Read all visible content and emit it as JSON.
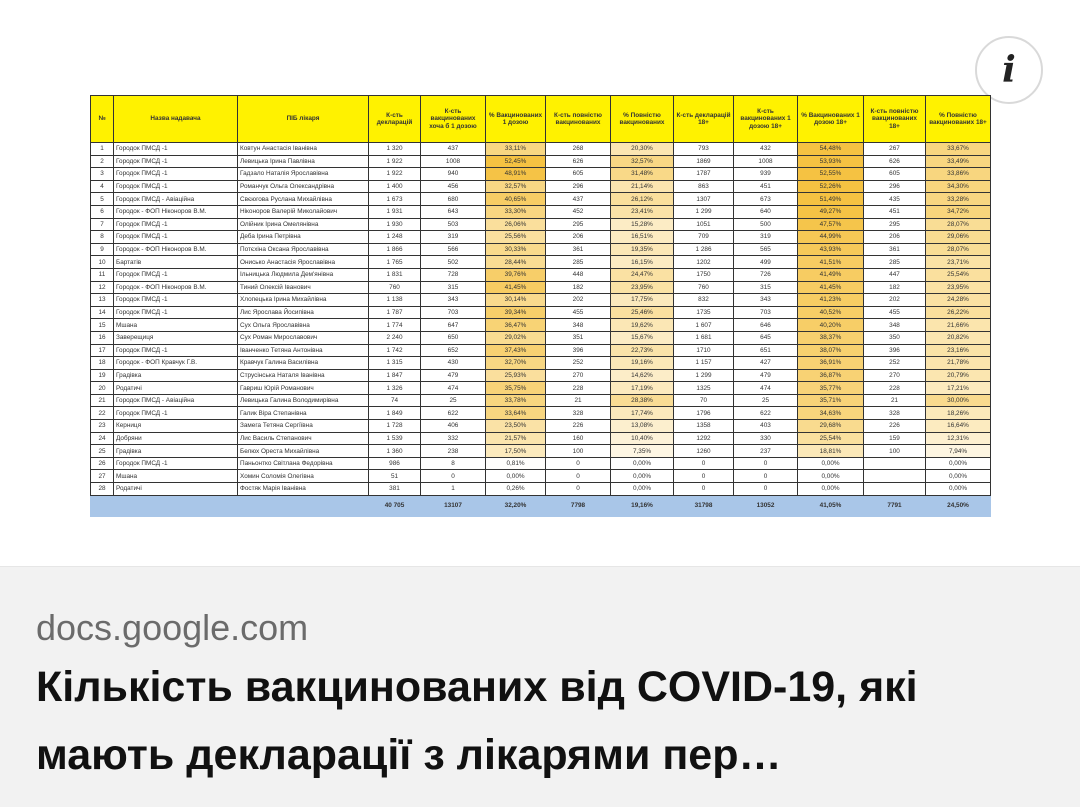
{
  "info_icon": "info-icon",
  "table": {
    "headers": [
      "№",
      "Назва надавача",
      "ПІБ лікаря",
      "К-сть декларацій",
      "К-сть вакцинованих хоча б 1 дозою",
      "% Вакцинованих 1 дозою",
      "К-сть повністю вакцинованих",
      "% Повністю вакцинованих",
      "К-сть декларацій 18+",
      "К-сть вакцинованих 1 дозою 18+",
      "% Вакцинованих 1 дозою 18+",
      "К-сть повністю вакцинованих 18+",
      "% Повністю вакцинованих 18+"
    ],
    "rows": [
      [
        "1",
        "Городок ПМСД -1",
        "Ковтун Анастасія Іванівна",
        "1 320",
        "437",
        "33,11%",
        "268",
        "20,30%",
        "793",
        "432",
        "54,48%",
        "267",
        "33,67%"
      ],
      [
        "2",
        "Городок ПМСД -1",
        "Левицька Ірина Павлівна",
        "1 922",
        "1008",
        "52,45%",
        "626",
        "32,57%",
        "1869",
        "1008",
        "53,93%",
        "626",
        "33,49%"
      ],
      [
        "3",
        "Городок ПМСД -1",
        "Гадзало Наталія Ярославівна",
        "1 922",
        "940",
        "48,91%",
        "605",
        "31,48%",
        "1787",
        "939",
        "52,55%",
        "605",
        "33,86%"
      ],
      [
        "4",
        "Городок ПМСД -1",
        "Романчук Ольга  Олександрівна",
        "1 400",
        "456",
        "32,57%",
        "296",
        "21,14%",
        "863",
        "451",
        "52,26%",
        "296",
        "34,30%"
      ],
      [
        "5",
        "Городок ПМСД - Авіаційна",
        "Свєюгова Руслана Михайлівна",
        "1 673",
        "680",
        "40,65%",
        "437",
        "26,12%",
        "1307",
        "673",
        "51,49%",
        "435",
        "33,28%"
      ],
      [
        "6",
        "Городок - ФОП Ніконоров В.М.",
        "Ніконоров Валерій Миколайович",
        "1 931",
        "643",
        "33,30%",
        "452",
        "23,41%",
        "1 299",
        "640",
        "49,27%",
        "451",
        "34,72%"
      ],
      [
        "7",
        "Городок ПМСД -1",
        "Олійник Ірина Омелянівна",
        "1 930",
        "503",
        "26,06%",
        "295",
        "15,28%",
        "1051",
        "500",
        "47,57%",
        "295",
        "28,07%"
      ],
      [
        "8",
        "Городок ПМСД -1",
        "Деба Ірина Петрівна",
        "1 248",
        "319",
        "25,56%",
        "206",
        "16,51%",
        "709",
        "319",
        "44,99%",
        "206",
        "29,06%"
      ],
      [
        "9",
        "Городок - ФОП Ніконоров В.М.",
        "Потєхіна Оксана Ярославівна",
        "1 866",
        "566",
        "30,33%",
        "361",
        "19,35%",
        "1 286",
        "565",
        "43,93%",
        "361",
        "28,07%"
      ],
      [
        "10",
        "Бартатів",
        "Онисько Анастасія Ярославівна",
        "1 765",
        "502",
        "28,44%",
        "285",
        "16,15%",
        "1202",
        "499",
        "41,51%",
        "285",
        "23,71%"
      ],
      [
        "11",
        "Городок ПМСД -1",
        "Ільницька Людмила Дем'янівна",
        "1 831",
        "728",
        "39,76%",
        "448",
        "24,47%",
        "1750",
        "726",
        "41,49%",
        "447",
        "25,54%"
      ],
      [
        "12",
        "Городок - ФОП Ніконоров В.М.",
        "Тиний Олексій Іванович",
        "760",
        "315",
        "41,45%",
        "182",
        "23,95%",
        "760",
        "315",
        "41,45%",
        "182",
        "23,95%"
      ],
      [
        "13",
        "Городок ПМСД -1",
        "Хлопецька Ірина Михайлівна",
        "1 138",
        "343",
        "30,14%",
        "202",
        "17,75%",
        "832",
        "343",
        "41,23%",
        "202",
        "24,28%"
      ],
      [
        "14",
        "Городок ПМСД -1",
        "Лис Ярослава Йосипівна",
        "1 787",
        "703",
        "39,34%",
        "455",
        "25,46%",
        "1735",
        "703",
        "40,52%",
        "455",
        "26,22%"
      ],
      [
        "15",
        "Мшана",
        "Сух Ольга Ярославівна",
        "1 774",
        "647",
        "36,47%",
        "348",
        "19,62%",
        "1 607",
        "646",
        "40,20%",
        "348",
        "21,66%"
      ],
      [
        "16",
        "Заверещиця",
        "Сух Роман Мирославович",
        "2 240",
        "650",
        "29,02%",
        "351",
        "15,67%",
        "1 681",
        "645",
        "38,37%",
        "350",
        "20,82%"
      ],
      [
        "17",
        "Городок ПМСД -1",
        "Іванченко Тетяна Антонівна",
        "1 742",
        "652",
        "37,43%",
        "396",
        "22,73%",
        "1710",
        "651",
        "38,07%",
        "396",
        "23,16%"
      ],
      [
        "18",
        "Городок - ФОП Кравчук Г.В.",
        "Кравчук Галина Василівна",
        "1 315",
        "430",
        "32,70%",
        "252",
        "19,16%",
        "1 157",
        "427",
        "36,91%",
        "252",
        "21,78%"
      ],
      [
        "19",
        "Градівка",
        "Струсінська Наталя Іванівна",
        "1 847",
        "479",
        "25,93%",
        "270",
        "14,62%",
        "1 299",
        "479",
        "36,87%",
        "270",
        "20,79%"
      ],
      [
        "20",
        "Родатичі",
        "Гавриш Юрій Романович",
        "1 326",
        "474",
        "35,75%",
        "228",
        "17,19%",
        "1325",
        "474",
        "35,77%",
        "228",
        "17,21%"
      ],
      [
        "21",
        "Городок ПМСД - Авіаційна",
        "Левицька Галина Володимирівна",
        "74",
        "25",
        "33,78%",
        "21",
        "28,38%",
        "70",
        "25",
        "35,71%",
        "21",
        "30,00%"
      ],
      [
        "22",
        "Городок ПМСД -1",
        "Галик Віра Степанівна",
        "1 849",
        "622",
        "33,64%",
        "328",
        "17,74%",
        "1796",
        "622",
        "34,63%",
        "328",
        "18,26%"
      ],
      [
        "23",
        "Керниця",
        "Замега Тетяна Сергіївна",
        "1 728",
        "406",
        "23,50%",
        "226",
        "13,08%",
        "1358",
        "403",
        "29,68%",
        "226",
        "16,64%"
      ],
      [
        "24",
        "Добряни",
        "Лис Василь Степанович",
        "1 539",
        "332",
        "21,57%",
        "160",
        "10,40%",
        "1292",
        "330",
        "25,54%",
        "159",
        "12,31%"
      ],
      [
        "25",
        "Градівка",
        "Белюх Ореста Михайлівна",
        "1 360",
        "238",
        "17,50%",
        "100",
        "7,35%",
        "1260",
        "237",
        "18,81%",
        "100",
        "7,94%"
      ],
      [
        "26",
        "Городок ПМСД -1",
        "Паньонтко Світлана Федорівна",
        "986",
        "8",
        "0,81%",
        "0",
        "0,00%",
        "0",
        "0",
        "0,00%",
        "",
        "0,00%"
      ],
      [
        "27",
        "Мшана",
        "Хомин Соломія Олегівна",
        "51",
        "0",
        "0,00%",
        "0",
        "0,00%",
        "0",
        "0",
        "0,00%",
        "",
        "0,00%"
      ],
      [
        "28",
        "Родатичі",
        "Фостяк Марія Іванівна",
        "381",
        "1",
        "0,26%",
        "0",
        "0,00%",
        "0",
        "0",
        "0,00%",
        "",
        "0,00%"
      ]
    ],
    "totals": [
      "",
      "",
      "",
      "40 705",
      "13107",
      "32,20%",
      "7798",
      "19,16%",
      "31798",
      "13052",
      "41,05%",
      "7791",
      "24,50%"
    ],
    "colors": {
      "header": "#fff200",
      "heat": "#f5c242",
      "total": "#a9c6e8"
    }
  },
  "preview": {
    "domain": "docs.google.com",
    "title": "Кількість вакцинованих від COVID-19, які мають декларації з лікарями пер…"
  }
}
